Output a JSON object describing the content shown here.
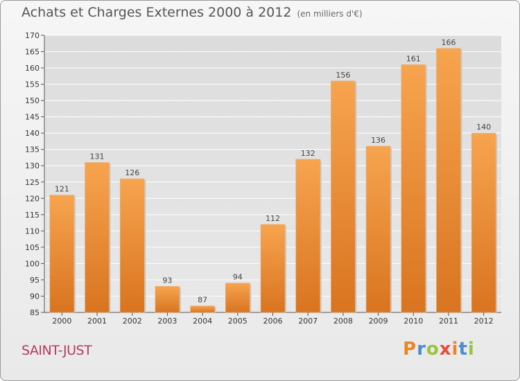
{
  "header": {
    "title": "Achats et Charges Externes 2000 à 2012",
    "subtitle": "(en milliers d'€)"
  },
  "footer": {
    "commune": "SAINT-JUST",
    "logo_text": "Proxiti",
    "logo_colors": [
      "#e8862a",
      "#4a8ccf",
      "#9ac43c",
      "#e84a3c",
      "#e8862a",
      "#4a8ccf",
      "#9ac43c"
    ]
  },
  "colors": {
    "bar_light": "#f7a44f",
    "bar_dark": "#d97420",
    "grid": "#ffffff",
    "title": "#555555",
    "commune": "#b33a5b"
  },
  "chart_data": {
    "type": "bar",
    "title": "Achats et Charges Externes 2000 à 2012",
    "subtitle": "(en milliers d'€)",
    "categories": [
      "2000",
      "2001",
      "2002",
      "2003",
      "2004",
      "2005",
      "2006",
      "2007",
      "2008",
      "2009",
      "2010",
      "2011",
      "2012"
    ],
    "values": [
      121,
      131,
      126,
      93,
      87,
      94,
      112,
      132,
      156,
      136,
      161,
      166,
      140
    ],
    "ylim": [
      85,
      170
    ],
    "yticks": [
      85,
      90,
      95,
      100,
      105,
      110,
      115,
      120,
      125,
      130,
      135,
      140,
      145,
      150,
      155,
      160,
      165,
      170
    ],
    "grid": true,
    "data_labels": true
  }
}
